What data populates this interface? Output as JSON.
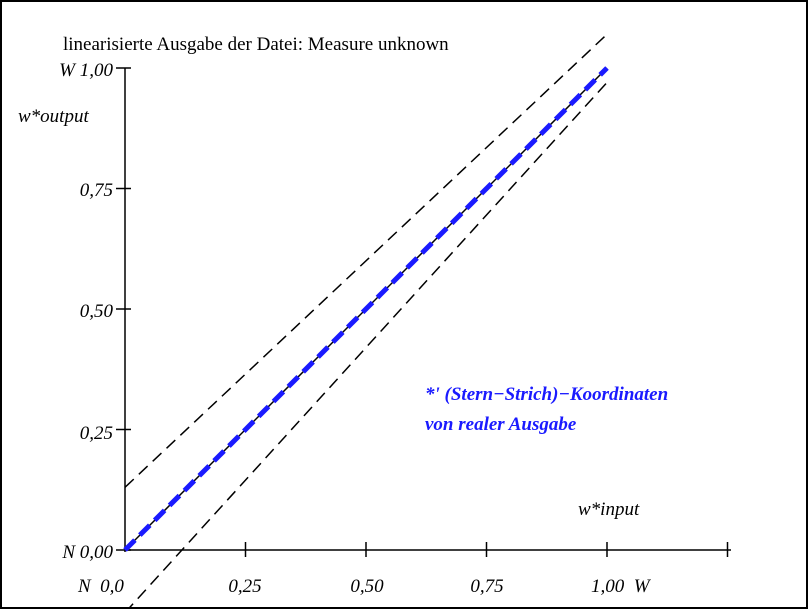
{
  "chart_data": {
    "type": "line",
    "title": "linearisierte Ausgabe der Datei: Measure unknown",
    "ylabel": "w*output",
    "xlabel": "w*input",
    "xlim": [
      0,
      1
    ],
    "ylim": [
      0,
      1
    ],
    "y_ticks": [
      "N 0,00",
      "0,25",
      "0,50",
      "0,75",
      "W 1,00"
    ],
    "x_ticks": [
      "N  0,0",
      "0,25",
      "0,50",
      "0,75",
      "1,00  W"
    ],
    "annotation": [
      "*' (Stern−Strich)−Koordinaten",
      "von realer Ausgabe"
    ],
    "grid": false,
    "series": [
      {
        "style": "solid",
        "color": "#000000",
        "x": [
          0,
          1
        ],
        "y": [
          0,
          1
        ]
      },
      {
        "style": "dashed-thick",
        "color": "#1a1aff",
        "x": [
          0,
          1
        ],
        "y": [
          0,
          1
        ]
      },
      {
        "style": "dashed",
        "color": "#000000",
        "x": [
          0,
          1
        ],
        "y": [
          0.13,
          1.07
        ]
      },
      {
        "style": "dashed",
        "color": "#000000",
        "x": [
          0,
          1
        ],
        "y": [
          -0.13,
          0.97
        ]
      }
    ]
  }
}
